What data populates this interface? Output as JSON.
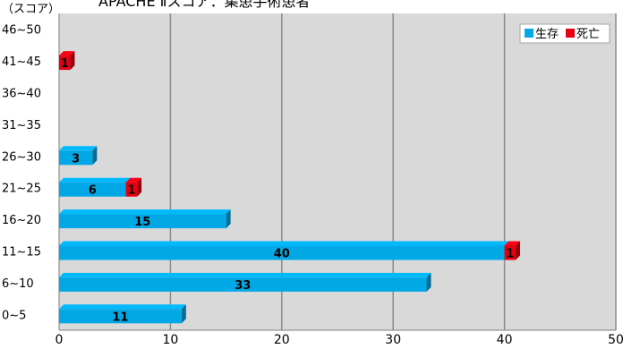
{
  "chart_data": {
    "type": "bar",
    "orientation": "horizontal",
    "stacked": true,
    "title": "APACHE Ⅱスコア：集患手術患者",
    "ylabel": "（スコア）",
    "xlabel": "",
    "categories": [
      "0~5",
      "6~10",
      "11~15",
      "16~20",
      "21~25",
      "26~30",
      "31~35",
      "36~40",
      "41~45",
      "46~50"
    ],
    "series": [
      {
        "name": "生存",
        "color": "#00a9e6",
        "values": [
          11,
          33,
          40,
          15,
          6,
          3,
          0,
          0,
          0,
          0
        ]
      },
      {
        "name": "死亡",
        "color": "#e60012",
        "values": [
          0,
          0,
          1,
          0,
          1,
          0,
          0,
          0,
          1,
          0
        ]
      }
    ],
    "xlim": [
      0,
      50
    ],
    "xticks": [
      0,
      10,
      20,
      30,
      40,
      50
    ],
    "grid": true,
    "legend": "top-right",
    "plot_background": "#d9d9d9"
  }
}
